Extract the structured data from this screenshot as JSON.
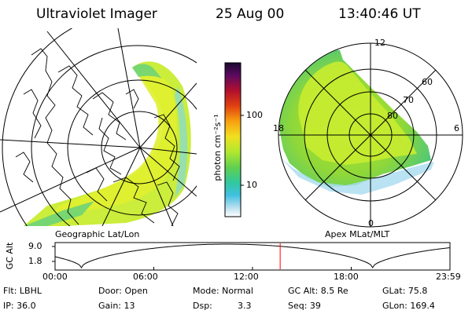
{
  "header": {
    "instrument": "Ultraviolet Imager",
    "date": "25 Aug 00",
    "time": "13:40:46 UT"
  },
  "geo_panel": {
    "label": "Geographic Lat/Lon"
  },
  "apex_panel": {
    "label": "Apex MLat/MLT",
    "mlt_labels": [
      "12",
      "18",
      "6",
      "0"
    ],
    "lat_labels": [
      "60",
      "70",
      "80"
    ]
  },
  "colorbar": {
    "unit": "photon cm⁻²s⁻¹",
    "ticks": [
      "100",
      "10"
    ],
    "colors": [
      "#1a0a2e",
      "#3a0a5a",
      "#7a0a70",
      "#c0102a",
      "#e03010",
      "#f07010",
      "#f8b010",
      "#f8e020",
      "#d8f020",
      "#a0e830",
      "#70d840",
      "#40c870",
      "#30c8b0",
      "#30b8d8",
      "#a0d8e8",
      "#ffffff"
    ]
  },
  "altitude_plot": {
    "ylabel": "GC Alt",
    "yticks": [
      "9.0",
      "1.8"
    ],
    "xticks": [
      "00:00",
      "06:00",
      "12:00",
      "18:00",
      "23:59"
    ],
    "current_hour": 13.68,
    "curve_color": "#000000",
    "marker_color": "#ff0000"
  },
  "info": {
    "flt": "Flt: LBHL",
    "ip": "IP: 36.0",
    "door": "Door: Open",
    "gain": "Gain: 13",
    "mode": "Mode: Normal",
    "dsp_label": "Dsp:",
    "dsp_value": "3.3",
    "gc_alt": "GC Alt: 8.5 Re",
    "seq": "Seq: 39",
    "glat": "GLat: 75.8",
    "glon": "GLon: 169.4"
  }
}
